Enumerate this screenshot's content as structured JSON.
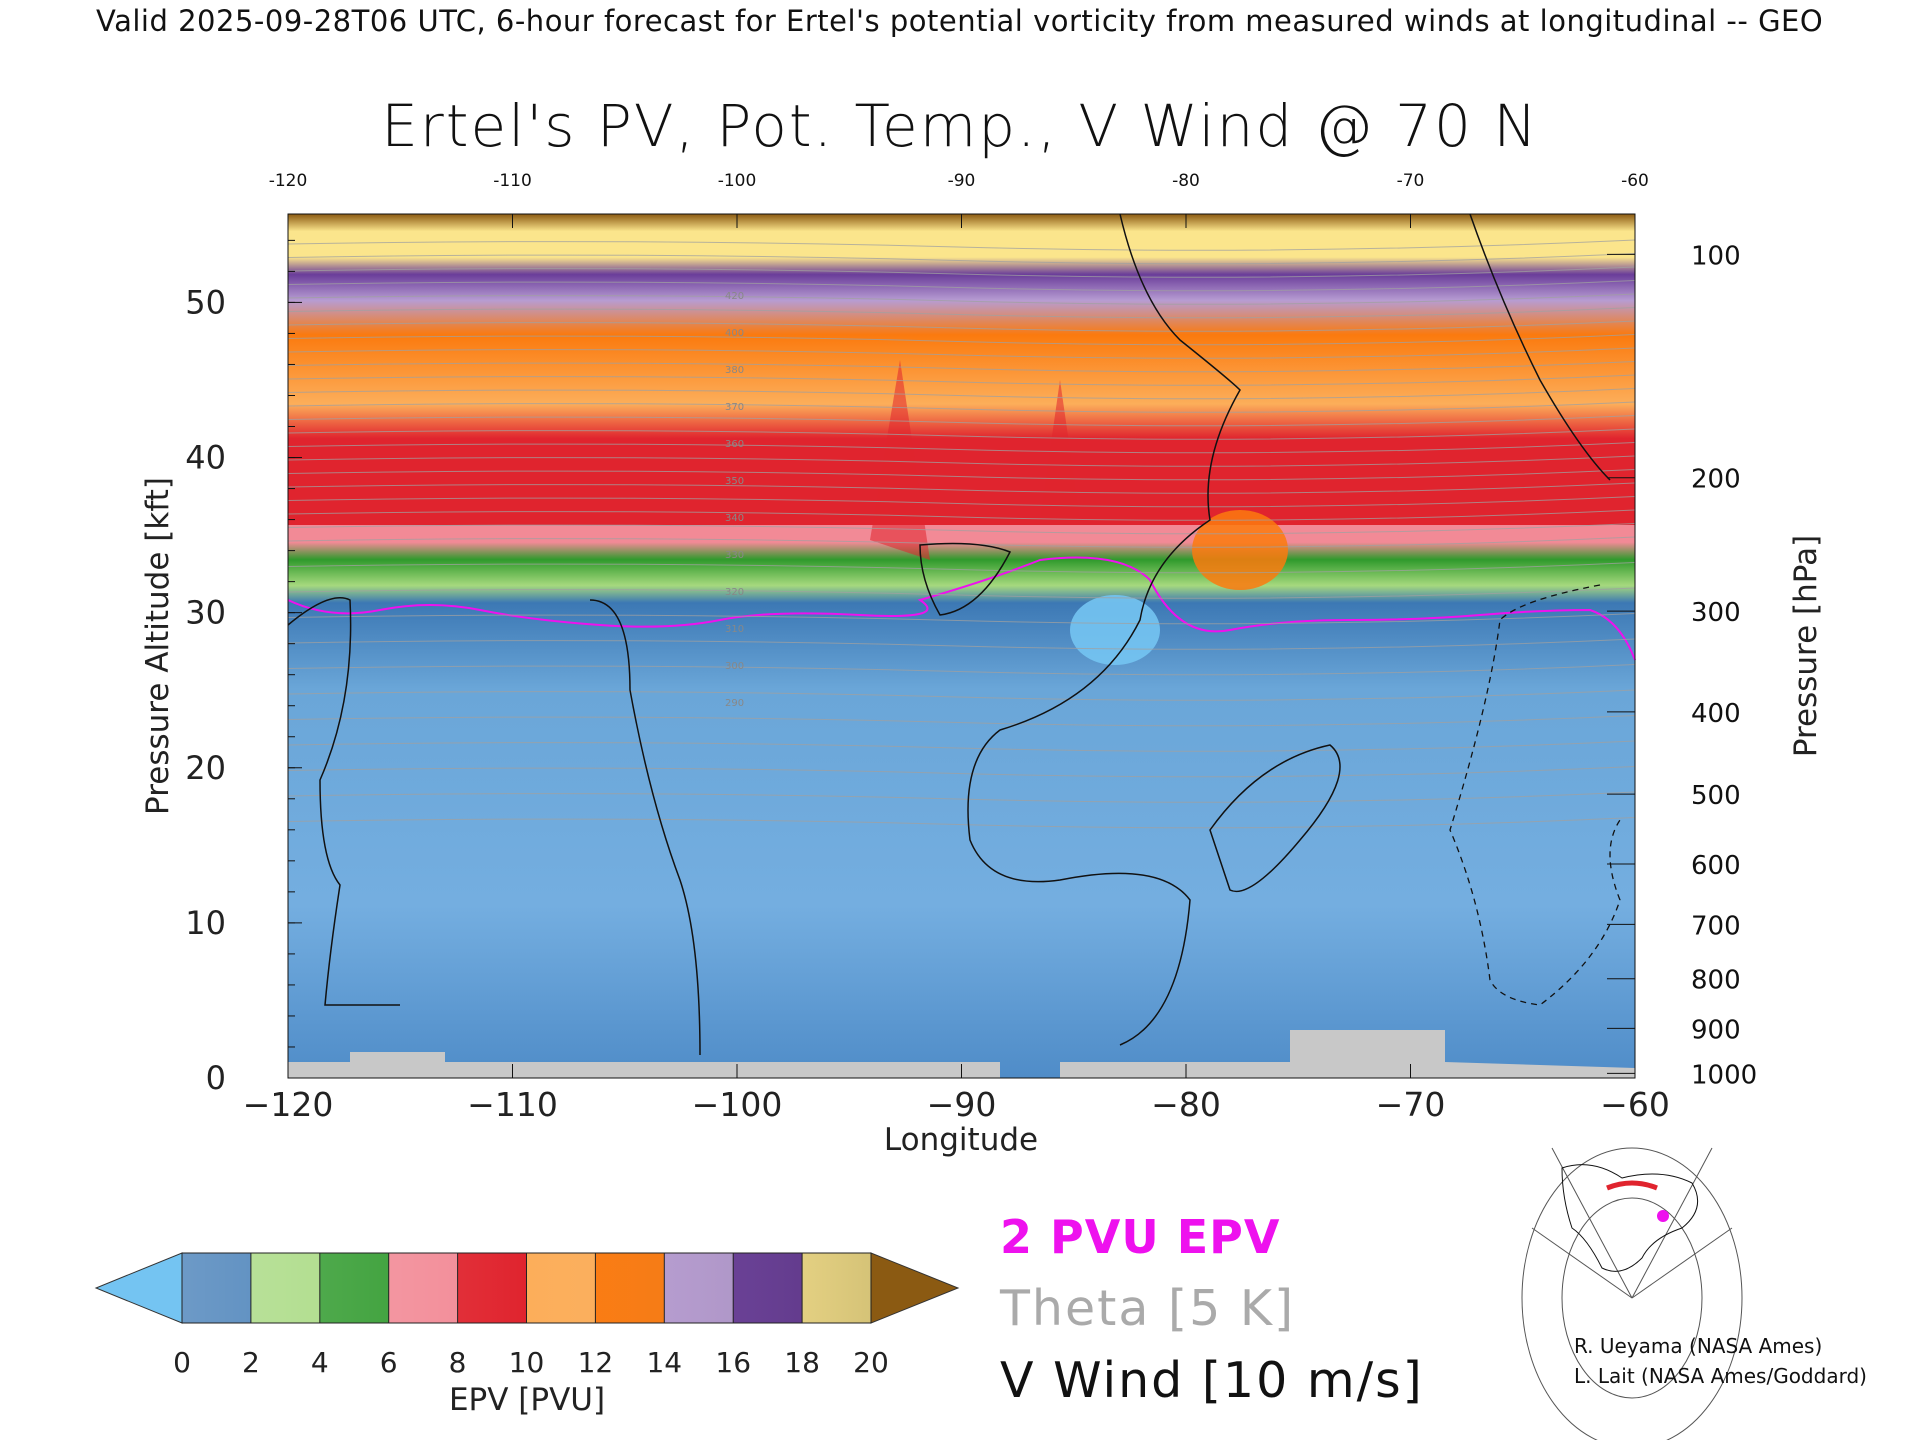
{
  "banner": "Valid 2025-09-28T06 UTC, 6-hour forecast for Ertel's potential vorticity from measured winds at longitudinal -- GEO",
  "chart_data": {
    "type": "heatmap",
    "title": "Ertel's PV, Pot. Temp., V Wind @ 70 N",
    "xlabel": "Longitude",
    "ylabel_left": "Pressure Altitude [kft]",
    "ylabel_right": "Pressure [hPa]",
    "xlim": [
      -120,
      -60
    ],
    "ylim_kft": [
      0,
      55.7
    ],
    "x_ticks": [
      -120,
      -110,
      -100,
      -90,
      -80,
      -70,
      -60
    ],
    "x_tick_labels": [
      "−120",
      "−110",
      "−100",
      "−90",
      "−80",
      "−70",
      "−60"
    ],
    "top_tick_labels": [
      "-120",
      "-110",
      "-100",
      "-90",
      "-80",
      "-70",
      "-60"
    ],
    "y_ticks_kft": [
      0,
      10,
      20,
      30,
      40,
      50
    ],
    "pressure_ticks": [
      {
        "hpa": 100,
        "kft": 53.1
      },
      {
        "hpa": 200,
        "kft": 38.7
      },
      {
        "hpa": 300,
        "kft": 30.1
      },
      {
        "hpa": 400,
        "kft": 23.6
      },
      {
        "hpa": 500,
        "kft": 18.3
      },
      {
        "hpa": 600,
        "kft": 13.8
      },
      {
        "hpa": 700,
        "kft": 9.9
      },
      {
        "hpa": 800,
        "kft": 6.4
      },
      {
        "hpa": 900,
        "kft": 3.2
      },
      {
        "hpa": 1000,
        "kft": 0.3
      }
    ],
    "pv_bands_kft": [
      {
        "pvu": 0.8,
        "bottom": 0,
        "top": 31
      },
      {
        "pvu": 2.0,
        "bottom": 30,
        "top": 31
      },
      {
        "pvu": 5.0,
        "bottom": 31,
        "top": 35
      },
      {
        "pvu": 8.0,
        "bottom": 35,
        "top": 39
      },
      {
        "pvu": 10.0,
        "bottom": 39,
        "top": 45
      },
      {
        "pvu": 13.0,
        "bottom": 45,
        "top": 51
      },
      {
        "pvu": 15.0,
        "bottom": 51,
        "top": 54
      },
      {
        "pvu": 18.0,
        "bottom": 54,
        "top": 55.7
      }
    ],
    "theta_label_values": [
      "420",
      "400",
      "380",
      "370",
      "360",
      "350",
      "340",
      "330",
      "320",
      "310",
      "300",
      "290"
    ],
    "colorbar": {
      "label": "EPV [PVU]",
      "ticks": [
        "0",
        "2",
        "4",
        "6",
        "8",
        "10",
        "12",
        "14",
        "16",
        "18",
        "20"
      ],
      "colors": [
        "#74c4f2",
        "#3c78b4",
        "#a6d97e",
        "#2f9a2c",
        "#f28a96",
        "#e0242e",
        "#fcae5a",
        "#fb7a0e",
        "#b79cd2",
        "#6a3d9a",
        "#fbe58c",
        "#8b5a12"
      ]
    }
  },
  "legend": {
    "pv": "2 PVU EPV",
    "theta": "Theta [5 K]",
    "wind": "V Wind [10 m/s]"
  },
  "credits": {
    "line1": "R. Ueyama (NASA Ames)",
    "line2": "L. Lait (NASA Ames/Goddard)"
  }
}
